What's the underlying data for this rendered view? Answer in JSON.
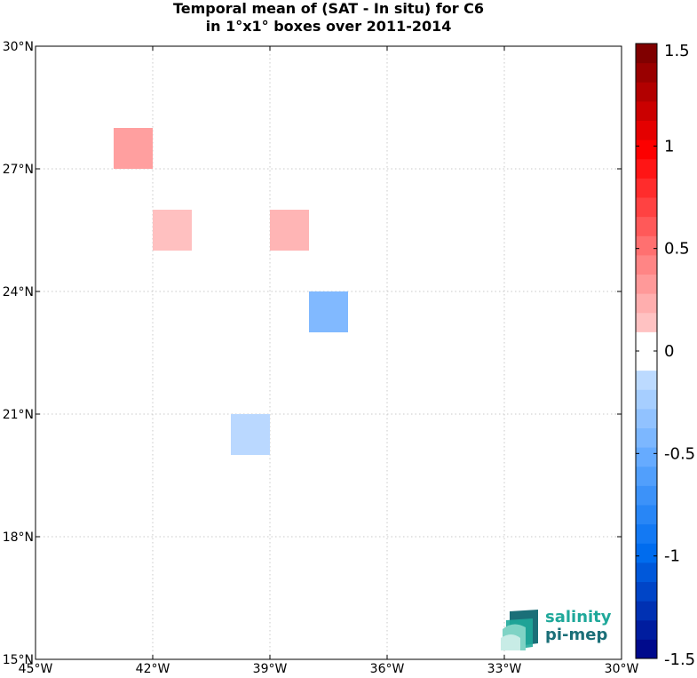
{
  "title": {
    "line1": "Temporal mean of (SAT - In situ) for C6",
    "line2": "in 1°x1° boxes over 2011-2014"
  },
  "chart_data": {
    "type": "heatmap",
    "projection": "lon-lat",
    "xlim": [
      -45,
      -30
    ],
    "ylim": [
      15,
      30
    ],
    "grid": true,
    "x_ticks": [
      {
        "value": -45,
        "label": "45°W"
      },
      {
        "value": -42,
        "label": "42°W"
      },
      {
        "value": -39,
        "label": "39°W"
      },
      {
        "value": -36,
        "label": "36°W"
      },
      {
        "value": -33,
        "label": "33°W"
      },
      {
        "value": -30,
        "label": "30°W"
      }
    ],
    "y_ticks": [
      {
        "value": 15,
        "label": "15°N"
      },
      {
        "value": 18,
        "label": "18°N"
      },
      {
        "value": 21,
        "label": "21°N"
      },
      {
        "value": 24,
        "label": "24°N"
      },
      {
        "value": 27,
        "label": "27°N"
      },
      {
        "value": 30,
        "label": "30°N"
      }
    ],
    "cells": [
      {
        "lon": -43,
        "lat": 27,
        "value": 0.3
      },
      {
        "lon": -42,
        "lat": 25,
        "value": 0.15
      },
      {
        "lon": -39,
        "lat": 25,
        "value": 0.2
      },
      {
        "lon": -38,
        "lat": 23,
        "value": -0.4
      },
      {
        "lon": -40,
        "lat": 20,
        "value": -0.15
      }
    ],
    "colorbar": {
      "vmin": -1.5,
      "vmax": 1.5,
      "levels": 32,
      "zero_color": "#ffffff",
      "ticks": [
        {
          "value": 1.5,
          "label": "1.5"
        },
        {
          "value": 1,
          "label": "1"
        },
        {
          "value": 0.5,
          "label": "0.5"
        },
        {
          "value": 0,
          "label": "0"
        },
        {
          "value": -0.5,
          "label": "-0.5"
        },
        {
          "value": -1,
          "label": "-1"
        },
        {
          "value": -1.5,
          "label": "-1.5"
        }
      ]
    }
  },
  "logo": {
    "line1": "salinity",
    "line2": "pi-mep",
    "colors": [
      "#1fa89a",
      "#1b6f78"
    ]
  }
}
